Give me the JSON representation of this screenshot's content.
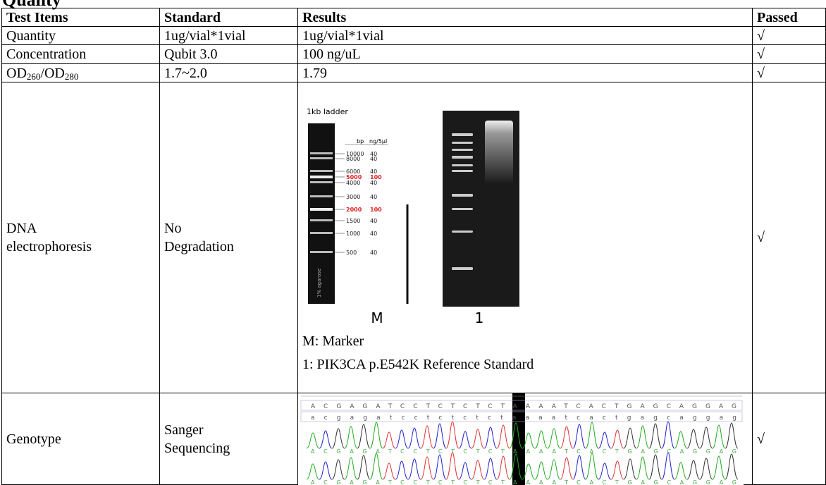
{
  "heading": "Quality",
  "table": {
    "header": [
      "Test Items",
      "Standard",
      "Results",
      "Passed"
    ],
    "rows": [
      {
        "item": "Quantity",
        "standard": "1ug/vial*1vial",
        "result": "1ug/vial*1vial",
        "passed": "√"
      },
      {
        "item": "Concentration",
        "standard": "Qubit 3.0",
        "result": "100 ng/uL",
        "passed": "√"
      },
      {
        "item": [
          "OD",
          "260",
          "/OD",
          "280"
        ],
        "standard": "1.7~2.0",
        "result": "1.79",
        "passed": "√"
      },
      {
        "item": [
          "DNA",
          "electrophoresis"
        ],
        "standard": [
          "No",
          "Degradation"
        ],
        "result": {
          "ladder_title": "1kb ladder",
          "col_bp": "bp",
          "col_ng": "ng/5µl",
          "bp": [
            "10000",
            "8000",
            "6000",
            "5000",
            "4000",
            "3000",
            "2000",
            "1500",
            "1000",
            "500"
          ],
          "ng": [
            "40",
            "40",
            "40",
            "100",
            "40",
            "40",
            "100",
            "40",
            "40",
            "40"
          ],
          "agarose": "1% agarose",
          "lane_m": "M",
          "lane_1": "1",
          "legend": [
            "M: Marker",
            "1: PIK3CA p.E542K Reference Standard"
          ]
        },
        "passed": "√"
      },
      {
        "item": "Genotype",
        "standard": [
          "Sanger",
          "Sequencing"
        ],
        "result": {
          "sequence_upper": "ACGAGATCCTCTCTCTAAAATCACTGAGCAGGAG",
          "sequence_lower": "acgagatcctctctctaaaatcactgagcaggag"
        },
        "passed": "√"
      }
    ]
  }
}
